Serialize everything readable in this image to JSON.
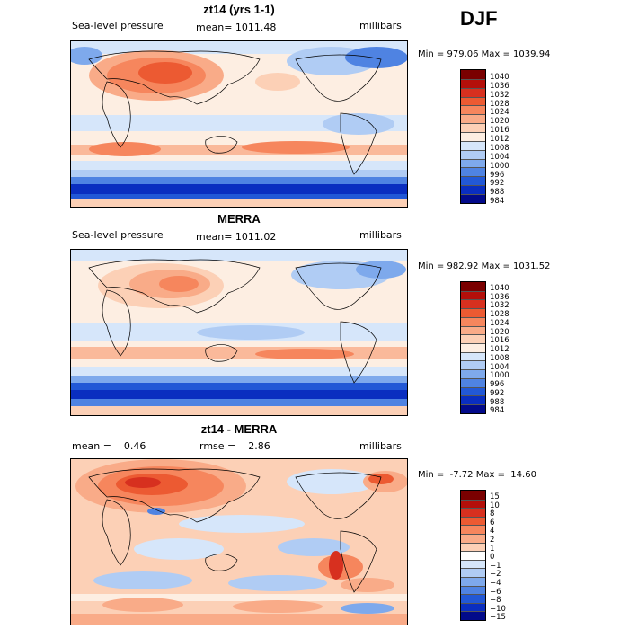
{
  "season": "DJF",
  "panels": [
    {
      "title": "zt14 (yrs 1-1)",
      "left": "Sea-level pressure",
      "middle": "mean= 1011.48",
      "right": "millibars",
      "minmax": "Min = 979.06 Max = 1039.94",
      "colorbar_labels": [
        "1040",
        "1036",
        "1032",
        "1028",
        "1024",
        "1020",
        "1016",
        "1012",
        "1008",
        "1004",
        "1000",
        "996",
        "992",
        "988",
        "984"
      ]
    },
    {
      "title": "MERRA",
      "left": "Sea-level pressure",
      "middle": "mean= 1011.02",
      "right": "millibars",
      "minmax": "Min = 982.92 Max = 1031.52",
      "colorbar_labels": [
        "1040",
        "1036",
        "1032",
        "1028",
        "1024",
        "1020",
        "1016",
        "1012",
        "1008",
        "1004",
        "1000",
        "996",
        "992",
        "988",
        "984"
      ]
    },
    {
      "title": "zt14 - MERRA",
      "left": "mean =    0.46",
      "middle": "rmse =    2.86",
      "right": "millibars",
      "minmax": "Min =  -7.72 Max =  14.60",
      "colorbar_labels": [
        "15",
        "10",
        "8",
        "6",
        "4",
        "2",
        "1",
        "0",
        "−1",
        "−2",
        "−4",
        "−6",
        "−8",
        "−10",
        "−15"
      ]
    }
  ],
  "colors": {
    "abs_scale": [
      "#7a0000",
      "#b40f0a",
      "#d7301f",
      "#ec5a32",
      "#f6865d",
      "#f9ab88",
      "#fcd0b6",
      "#fdeee2",
      "#d6e6fa",
      "#b0ccf4",
      "#7ea9ec",
      "#4f83e2",
      "#2258d6",
      "#0a2ec0",
      "#020a8a"
    ],
    "diff_scale": [
      "#7a0000",
      "#b40f0a",
      "#d7301f",
      "#ec5a32",
      "#f6865d",
      "#f9ab88",
      "#fcd0b6",
      "#ffffff",
      "#d6e6fa",
      "#b0ccf4",
      "#7ea9ec",
      "#4f83e2",
      "#2258d6",
      "#0a2ec0",
      "#020a8a"
    ]
  }
}
